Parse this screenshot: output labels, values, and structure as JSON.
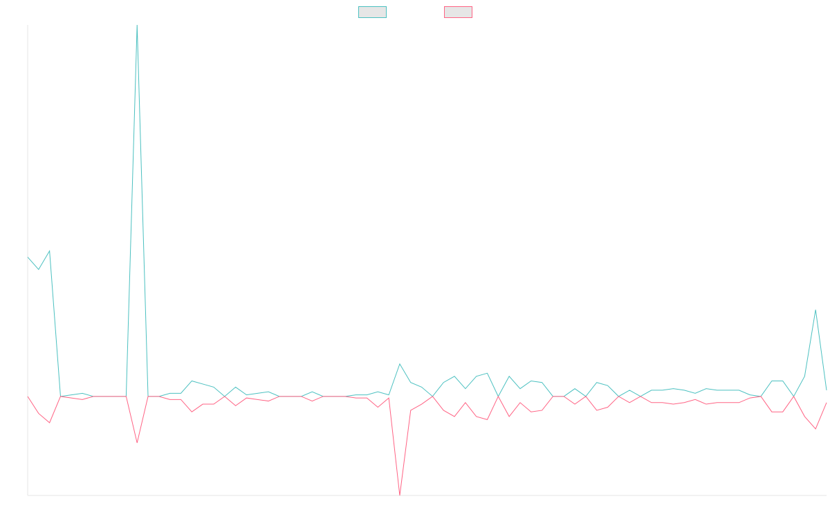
{
  "chart_data": {
    "type": "line",
    "title": "",
    "xlabel": "",
    "ylabel": "",
    "legend_position": "top-center",
    "axes_visible": true,
    "grid": false,
    "ylim": [
      -6.4,
      24
    ],
    "series": [
      {
        "name": "",
        "color": "#4bc0c0",
        "fill": "#e6e6e6",
        "values": [
          9.0,
          8.2,
          9.4,
          0.0,
          0.1,
          0.2,
          0.0,
          0.0,
          0.0,
          0.0,
          24.0,
          0.0,
          0.0,
          0.2,
          0.2,
          1.0,
          0.8,
          0.6,
          0.0,
          0.6,
          0.1,
          0.2,
          0.3,
          0.0,
          0.0,
          0.0,
          0.3,
          0.0,
          0.0,
          0.0,
          0.1,
          0.1,
          0.3,
          0.1,
          2.1,
          0.9,
          0.6,
          0.0,
          0.9,
          1.3,
          0.5,
          1.3,
          1.5,
          0.0,
          1.3,
          0.5,
          1.0,
          0.9,
          0.0,
          0.0,
          0.5,
          0.0,
          0.9,
          0.7,
          0.0,
          0.4,
          0.0,
          0.4,
          0.4,
          0.5,
          0.4,
          0.2,
          0.5,
          0.4,
          0.4,
          0.4,
          0.1,
          0.0,
          1.0,
          1.0,
          0.0,
          1.3,
          5.6,
          0.4
        ]
      },
      {
        "name": "",
        "color": "#ff6384",
        "fill": "#e6e6e6",
        "values": [
          0.0,
          -1.1,
          -1.7,
          0.0,
          -0.1,
          -0.2,
          0.0,
          0.0,
          0.0,
          0.0,
          -3.0,
          0.0,
          0.0,
          -0.2,
          -0.2,
          -1.0,
          -0.5,
          -0.5,
          0.0,
          -0.6,
          -0.1,
          -0.2,
          -0.3,
          0.0,
          0.0,
          0.0,
          -0.3,
          0.0,
          0.0,
          0.0,
          -0.1,
          -0.1,
          -0.7,
          -0.1,
          -6.4,
          -0.9,
          -0.5,
          0.0,
          -0.9,
          -1.3,
          -0.4,
          -1.3,
          -1.5,
          0.0,
          -1.3,
          -0.4,
          -1.0,
          -0.9,
          0.0,
          0.0,
          -0.5,
          0.0,
          -0.9,
          -0.7,
          0.0,
          -0.4,
          0.0,
          -0.4,
          -0.4,
          -0.5,
          -0.4,
          -0.2,
          -0.5,
          -0.4,
          -0.4,
          -0.4,
          -0.1,
          0.0,
          -1.0,
          -1.0,
          0.0,
          -1.3,
          -2.1,
          -0.4
        ]
      }
    ]
  }
}
